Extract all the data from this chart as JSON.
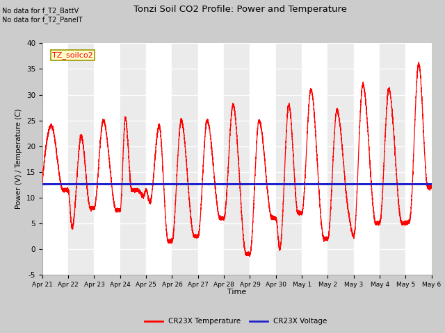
{
  "title": "Tonzi Soil CO2 Profile: Power and Temperature",
  "ylabel": "Power (V) / Temperature (C)",
  "xlabel": "Time",
  "ylim": [
    -5,
    40
  ],
  "yticks": [
    -5,
    0,
    5,
    10,
    15,
    20,
    25,
    30,
    35,
    40
  ],
  "xtick_labels": [
    "Apr 21",
    "Apr 22",
    "Apr 23",
    "Apr 24",
    "Apr 25",
    "Apr 26",
    "Apr 27",
    "Apr 28",
    "Apr 29",
    "Apr 30",
    "May 1",
    "May 2",
    "May 3",
    "May 4",
    "May 5",
    "May 6"
  ],
  "annotation_line1": "No data for f_T2_BattV",
  "annotation_line2": "No data for f_T2_PanelT",
  "legend_label_box": "TZ_soilco2",
  "legend_temp": "CR23X Temperature",
  "legend_volt": "CR23X Voltage",
  "temp_color": "#ff0000",
  "voltage_color": "#2222cc",
  "fig_bg_color": "#cccccc",
  "plot_bg_color": "#ebebeb",
  "stripe_color": "#e0e0e0",
  "voltage_mean": 12.6,
  "num_days": 15
}
